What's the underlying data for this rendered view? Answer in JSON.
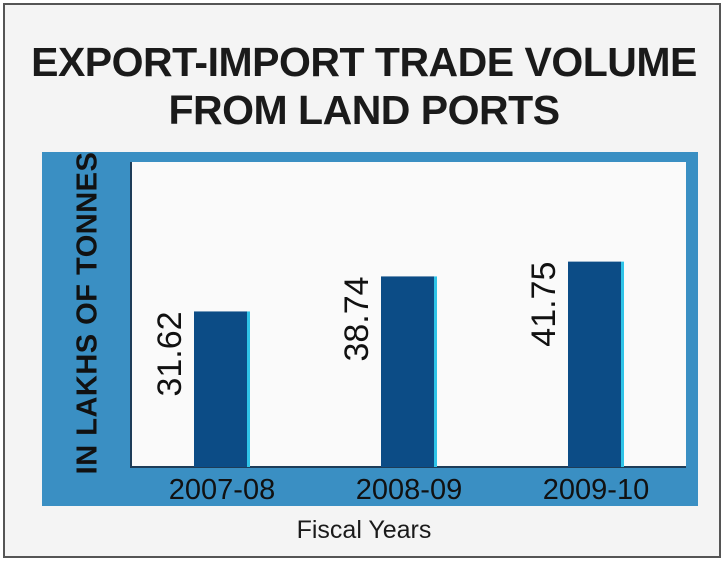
{
  "chart_data": {
    "type": "bar",
    "title": "EXPORT-IMPORT TRADE VOLUME FROM LAND PORTS",
    "title_lines": [
      "EXPORT-IMPORT TRADE VOLUME",
      "FROM LAND PORTS"
    ],
    "ylabel": "IN LAKHS OF TONNES",
    "xlabel": "Fiscal Years",
    "categories": [
      "2007-08",
      "2008-09",
      "2009-10"
    ],
    "values": [
      31.62,
      38.74,
      41.75
    ],
    "value_labels": [
      "31.62",
      "38.74",
      "41.75"
    ],
    "ylim": [
      0,
      62
    ],
    "grid": false,
    "colors": {
      "bar": "#0c4c86",
      "bar_edge": "#2fc4e8",
      "band": "#3a8fc3",
      "axis": "#1d3c58"
    }
  }
}
